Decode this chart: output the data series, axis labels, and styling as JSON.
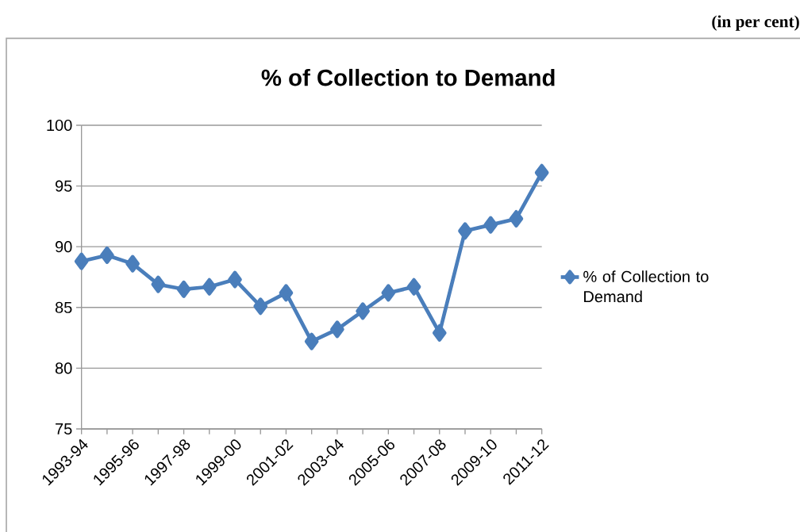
{
  "chart_data": {
    "type": "line",
    "title": "% of Collection to Demand",
    "annotations": [
      "(in per cent)"
    ],
    "categories": [
      "1993-94",
      null,
      "1995-96",
      null,
      "1997-98",
      null,
      "1999-00",
      null,
      "2001-02",
      null,
      "2003-04",
      null,
      "2005-06",
      null,
      "2007-08",
      null,
      "2009-10",
      null,
      "2011-12"
    ],
    "series": [
      {
        "name": "% of Collection to Demand",
        "color": "#4a7ebb",
        "values": [
          88.8,
          89.3,
          88.6,
          86.9,
          86.5,
          86.7,
          87.3,
          85.1,
          86.2,
          82.2,
          83.2,
          84.7,
          86.2,
          86.7,
          82.9,
          91.3,
          91.8,
          92.3,
          96.1
        ]
      }
    ],
    "ylim": [
      75,
      100
    ],
    "yticks": [
      75,
      80,
      85,
      90,
      95,
      100
    ],
    "grid": "y",
    "legend": "right",
    "marker": "diamond",
    "line_style": "solid"
  }
}
